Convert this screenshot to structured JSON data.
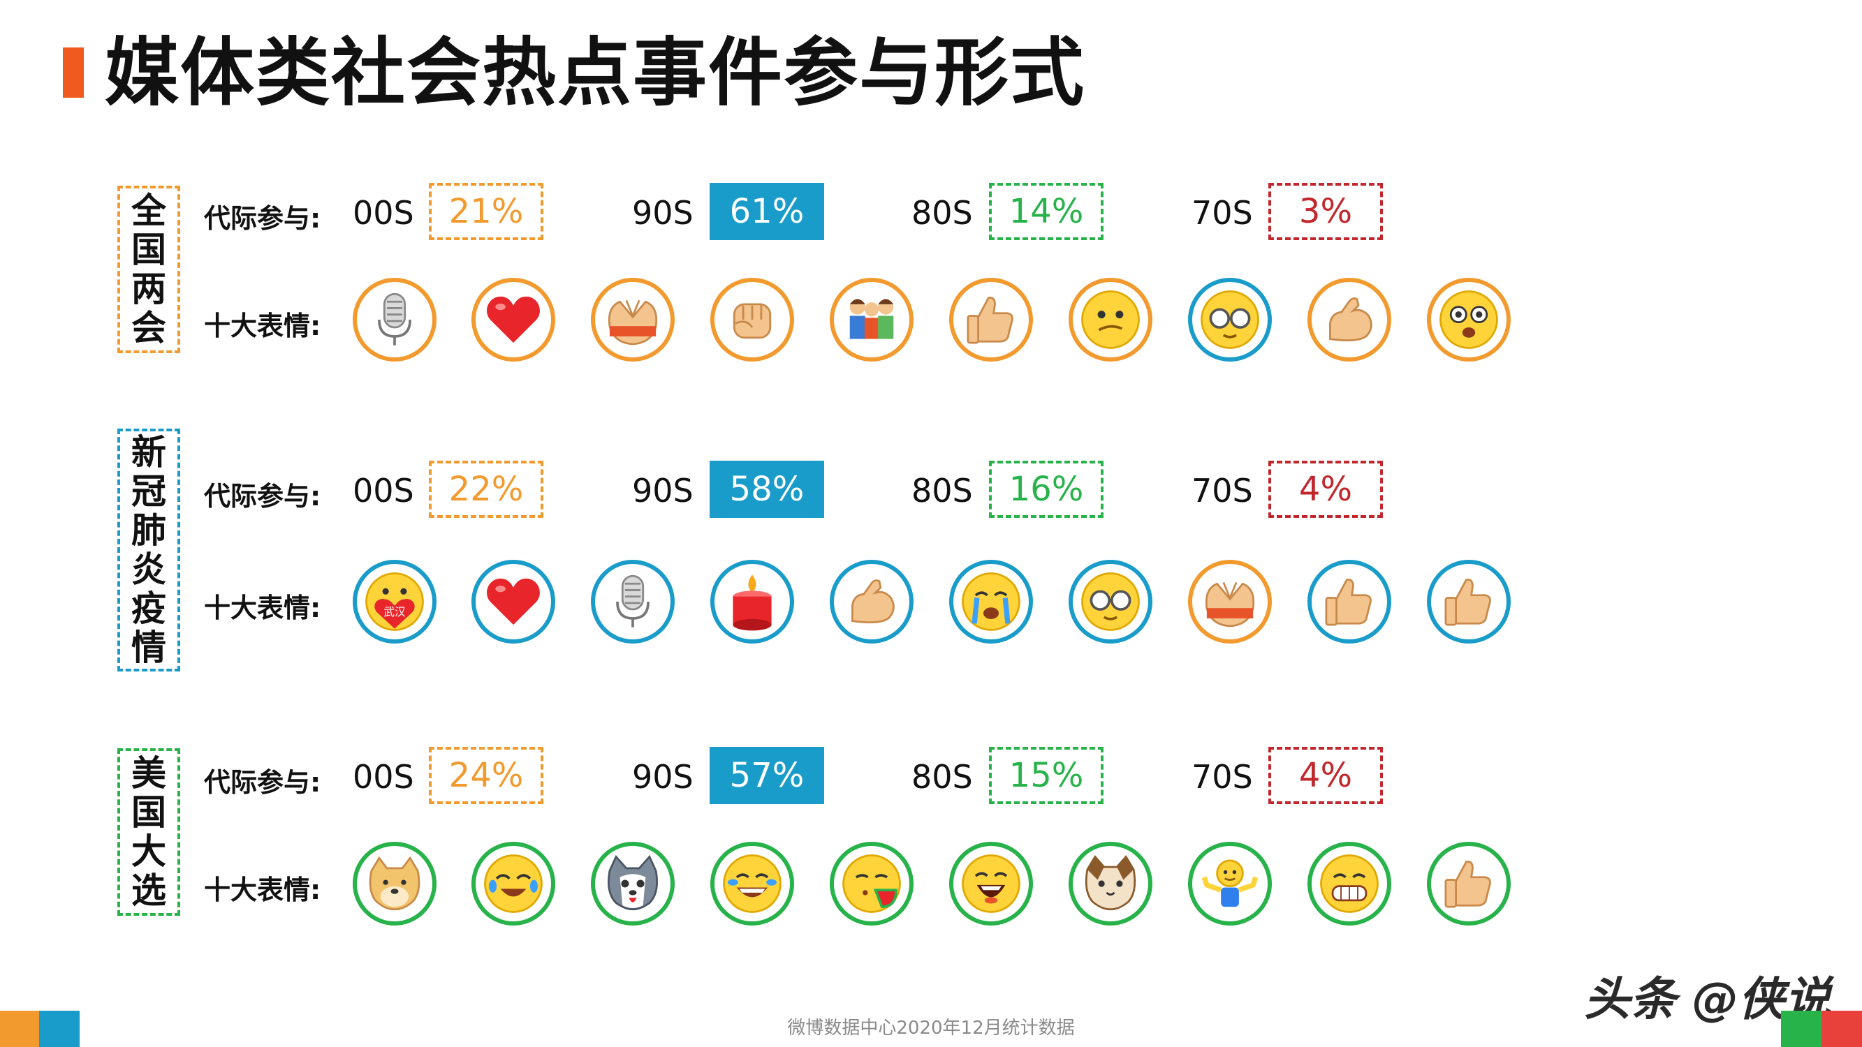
{
  "title": "媒体类社会热点事件参与形式",
  "row_labels": {
    "participation": "代际参与:",
    "emoji": "十大表情:"
  },
  "generations": [
    "00S",
    "90S",
    "80S",
    "70S"
  ],
  "generation_colors": [
    "#F29A2E",
    "#199CC9",
    "#27B24A",
    "#C1272D"
  ],
  "sections": [
    {
      "label": "全国两会",
      "color": "#F29A2E",
      "percents": [
        "21%",
        "61%",
        "14%",
        "3%"
      ],
      "emojis": [
        "microphone-icon",
        "heart-icon",
        "clasped-hands-icon",
        "fist-icon",
        "family-icon",
        "thumbs-up-icon",
        "smirk-face-icon",
        "glasses-face-icon",
        "flexed-bicep-icon",
        "starry-eyes-face-icon"
      ],
      "emoji_border_colors": [
        "#F29A2E",
        "#F29A2E",
        "#F29A2E",
        "#F29A2E",
        "#F29A2E",
        "#F29A2E",
        "#F29A2E",
        "#199CC9",
        "#F29A2E",
        "#F29A2E"
      ]
    },
    {
      "label": "新冠肺炎疫情",
      "color": "#199CC9",
      "percents": [
        "22%",
        "58%",
        "16%",
        "4%"
      ],
      "emojis": [
        "wuhan-heart-face-icon",
        "heart-icon",
        "microphone-icon",
        "candle-icon",
        "flexed-bicep-icon",
        "crying-face-icon",
        "glasses-face-icon",
        "clasped-hands-icon",
        "thumbs-up-icon",
        "thumbs-up-icon"
      ],
      "emoji_badge_text": "武汉",
      "emoji_border_colors": [
        "#199CC9",
        "#199CC9",
        "#199CC9",
        "#199CC9",
        "#199CC9",
        "#199CC9",
        "#199CC9",
        "#F29A2E",
        "#199CC9",
        "#199CC9"
      ]
    },
    {
      "label": "美国大选",
      "color": "#27B24A",
      "percents": [
        "24%",
        "57%",
        "15%",
        "4%"
      ],
      "emojis": [
        "doge-icon",
        "laughing-tears-face-icon",
        "husky-icon",
        "tears-of-joy-face-icon",
        "melon-eating-face-icon",
        "big-laugh-face-icon",
        "cat-face-icon",
        "shrug-icon",
        "grin-face-icon",
        "thumbs-up-icon"
      ],
      "emoji_border_colors": [
        "#27B24A",
        "#27B24A",
        "#27B24A",
        "#27B24A",
        "#27B24A",
        "#27B24A",
        "#27B24A",
        "#27B24A",
        "#27B24A",
        "#27B24A"
      ]
    }
  ],
  "footer_note": "微博数据中心2020年12月统计数据",
  "watermark": "头条 @侠说"
}
